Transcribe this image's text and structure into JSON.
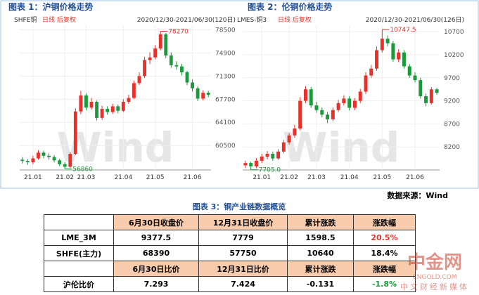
{
  "chart_data": [
    {
      "type": "candlestick",
      "title": "图表 1：沪铜价格走势",
      "series_name": "SHFE铜",
      "subtitle": "日线 后复权",
      "date_range": "2020/12/30-2021/06/30(120日)",
      "watermark": "Wind",
      "up_color": "#e8312a",
      "down_color": "#1a9a3a",
      "grid": true,
      "ylim": [
        56700,
        79200
      ],
      "yticks": [
        60500,
        64100,
        67700,
        71300,
        74900,
        78500
      ],
      "categories": [
        null,
        null,
        "21.01",
        null,
        null,
        null,
        null,
        null,
        "21.02",
        null,
        null,
        null,
        "21.03",
        null,
        null,
        null,
        null,
        null,
        null,
        "21.04",
        null,
        null,
        null,
        null,
        null,
        "21.05",
        null,
        null,
        null,
        null,
        null,
        null,
        "21.06",
        null,
        null,
        null
      ],
      "open": [
        58300,
        58100,
        57900,
        58500,
        59400,
        58900,
        58700,
        58200,
        57600,
        57200,
        59200,
        65800,
        68300,
        66400,
        67300,
        64800,
        66200,
        65700,
        66600,
        65900,
        67300,
        67900,
        70200,
        71300,
        73800,
        74200,
        75600,
        77800,
        74500,
        73000,
        72800,
        71900,
        70300,
        69400,
        67800,
        68700
      ],
      "high": [
        58700,
        58400,
        58900,
        59800,
        59700,
        59300,
        59000,
        58400,
        57900,
        59500,
        66300,
        69000,
        68600,
        67900,
        67500,
        66700,
        66600,
        67000,
        66900,
        67700,
        68400,
        70600,
        71900,
        74300,
        75000,
        76100,
        78270,
        78000,
        75000,
        73600,
        73200,
        72100,
        70800,
        69700,
        69100,
        69000
      ],
      "low": [
        57700,
        57500,
        57600,
        58300,
        58500,
        58300,
        57900,
        57300,
        56860,
        57000,
        59000,
        65400,
        66000,
        66100,
        64400,
        64500,
        65300,
        65400,
        65500,
        65700,
        67000,
        67700,
        69900,
        71000,
        73200,
        73900,
        75300,
        74100,
        72600,
        72300,
        71400,
        69900,
        68900,
        67400,
        67500,
        68000
      ],
      "close": [
        58100,
        57900,
        58500,
        59400,
        58900,
        58700,
        58200,
        57600,
        57200,
        59200,
        65800,
        68300,
        66400,
        67300,
        64800,
        66200,
        65700,
        66600,
        65900,
        67300,
        67900,
        70200,
        71300,
        73800,
        74200,
        75600,
        77800,
        74500,
        73000,
        72800,
        71900,
        70300,
        69400,
        67800,
        68700,
        68390
      ],
      "annotations": [
        "78270",
        "56860"
      ]
    },
    {
      "type": "candlestick",
      "title": "图表 2：伦铜价格走势",
      "series_name": "LMES-铜3",
      "subtitle": "日线 后复权",
      "date_range": "2020/12/30-2021/06/30(126日)",
      "watermark": "Wind",
      "up_color": "#e8312a",
      "down_color": "#1a9a3a",
      "grid": true,
      "ylim": [
        7700,
        10840
      ],
      "yticks": [
        8200,
        8700,
        9200,
        9700,
        10200,
        10700
      ],
      "categories": [
        null,
        null,
        null,
        "21.01",
        null,
        null,
        null,
        null,
        "21.02",
        null,
        null,
        null,
        null,
        "21.03",
        null,
        null,
        null,
        null,
        null,
        "21.04",
        null,
        null,
        null,
        null,
        null,
        "21.05",
        null,
        null,
        null,
        null,
        null,
        "21.06",
        null,
        null,
        null,
        null
      ],
      "open": [
        7800,
        7850,
        7780,
        7900,
        7990,
        8050,
        7950,
        8100,
        8300,
        8450,
        8600,
        9200,
        9450,
        9100,
        9000,
        8900,
        8800,
        9000,
        9150,
        9250,
        9050,
        9200,
        9400,
        9750,
        9900,
        10300,
        10550,
        10450,
        10100,
        10250,
        9950,
        9750,
        9650,
        9300,
        9150,
        9450
      ],
      "high": [
        7900,
        7880,
        7960,
        8050,
        8110,
        8100,
        8150,
        8350,
        8500,
        8680,
        9280,
        9520,
        9500,
        9180,
        9060,
        8960,
        9060,
        9220,
        9320,
        9300,
        9260,
        9460,
        9820,
        9980,
        10380,
        10747.5,
        10620,
        10500,
        10320,
        10300,
        10000,
        9820,
        9700,
        9360,
        9500,
        9480
      ],
      "low": [
        7740,
        7705,
        7740,
        7850,
        7930,
        7900,
        7920,
        8060,
        8250,
        8400,
        8560,
        9150,
        9050,
        8940,
        8840,
        8720,
        8760,
        8960,
        9100,
        8990,
        9000,
        9150,
        9350,
        9700,
        9850,
        10250,
        10380,
        10050,
        10040,
        9900,
        9700,
        9600,
        9250,
        9080,
        9120,
        9330
      ],
      "close": [
        7850,
        7780,
        7900,
        7990,
        8050,
        7950,
        8100,
        8300,
        8450,
        8600,
        9200,
        9450,
        9100,
        9000,
        8900,
        8800,
        9000,
        9150,
        9250,
        9050,
        9200,
        9400,
        9750,
        9900,
        10300,
        10550,
        10450,
        10100,
        10250,
        9950,
        9750,
        9650,
        9300,
        9150,
        9450,
        9377.5
      ],
      "annotations": [
        "10747.5",
        "7705.0"
      ]
    }
  ],
  "source": "数据来源：Wind",
  "table": {
    "title": "图表 3：铜产业链数据概览",
    "rows": [
      [
        "",
        "6月30日收盘价",
        "12月31日收盘价",
        "累计涨跌",
        "涨跌幅"
      ],
      [
        "LME_3M",
        "9377.5",
        "7779",
        "1598.5",
        "20.5%"
      ],
      [
        "SHFE(主力)",
        "68390",
        "57750",
        "10640",
        "18.4%"
      ],
      [
        "",
        "6月30日比价",
        "12月31日比价",
        "累计涨跌",
        "涨跌幅"
      ],
      [
        "沪伦比价",
        "7.293",
        "7.424",
        "-0.131",
        "-1.8%"
      ]
    ]
  },
  "watermark": {
    "name": "中金网",
    "site": "CNGOLD.COM",
    "slogan": "中文财经新媒体"
  }
}
